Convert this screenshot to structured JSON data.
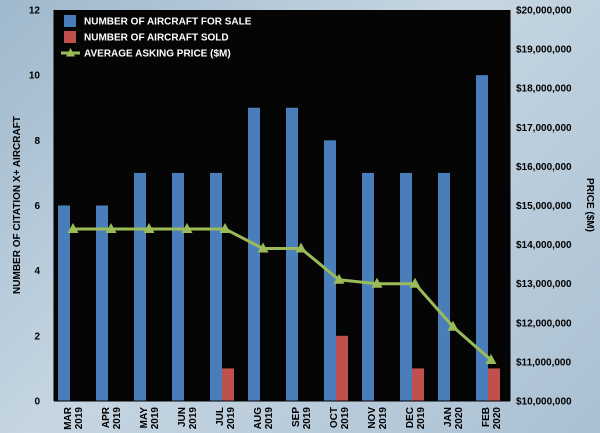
{
  "chart_data": {
    "type": "bar",
    "categories": [
      [
        "MAR",
        "2019"
      ],
      [
        "APR",
        "2019"
      ],
      [
        "MAY",
        "2019"
      ],
      [
        "JUN",
        "2019"
      ],
      [
        "JUL",
        "2019"
      ],
      [
        "AUG",
        "2019"
      ],
      [
        "SEP",
        "2019"
      ],
      [
        "OCT",
        "2019"
      ],
      [
        "NOV",
        "2019"
      ],
      [
        "DEC",
        "2019"
      ],
      [
        "JAN",
        "2020"
      ],
      [
        "FEB",
        "2020"
      ]
    ],
    "series": [
      {
        "name": "NUMBER OF AIRCRAFT FOR SALE",
        "type": "bar",
        "axis": "left",
        "color": "#4a7ebb",
        "values": [
          6,
          6,
          7,
          7,
          7,
          9,
          9,
          8,
          7,
          7,
          7,
          10
        ]
      },
      {
        "name": "NUMBER OF AIRCRAFT SOLD",
        "type": "bar",
        "axis": "left",
        "color": "#c0504d",
        "values": [
          0,
          0,
          0,
          0,
          1,
          0,
          0,
          2,
          0,
          1,
          0,
          1
        ]
      },
      {
        "name": "AVERAGE ASKING PRICE ($M)",
        "type": "line",
        "axis": "right",
        "color": "#9bbb59",
        "values": [
          14400000,
          14400000,
          14400000,
          14400000,
          14400000,
          13900000,
          13900000,
          13100000,
          13000000,
          13000000,
          11900000,
          11050000
        ]
      }
    ],
    "ylabel": "NUMBER OF CITATION X+ AIRCRAFT",
    "y2label": "PRICE ($M)",
    "ylim": [
      0,
      12
    ],
    "yticks": [
      0,
      2,
      4,
      6,
      8,
      10,
      12
    ],
    "y2lim": [
      10000000,
      20000000
    ],
    "y2ticks": [
      "$10,000,000",
      "$11,000,000",
      "$12,000,000",
      "$13,000,000",
      "$14,000,000",
      "$15,000,000",
      "$16,000,000",
      "$17,000,000",
      "$18,000,000",
      "$19,000,000",
      "$20,000,000"
    ],
    "legend_position": "top-left",
    "grid": false,
    "colors": {
      "plot_background": "#050505"
    }
  }
}
